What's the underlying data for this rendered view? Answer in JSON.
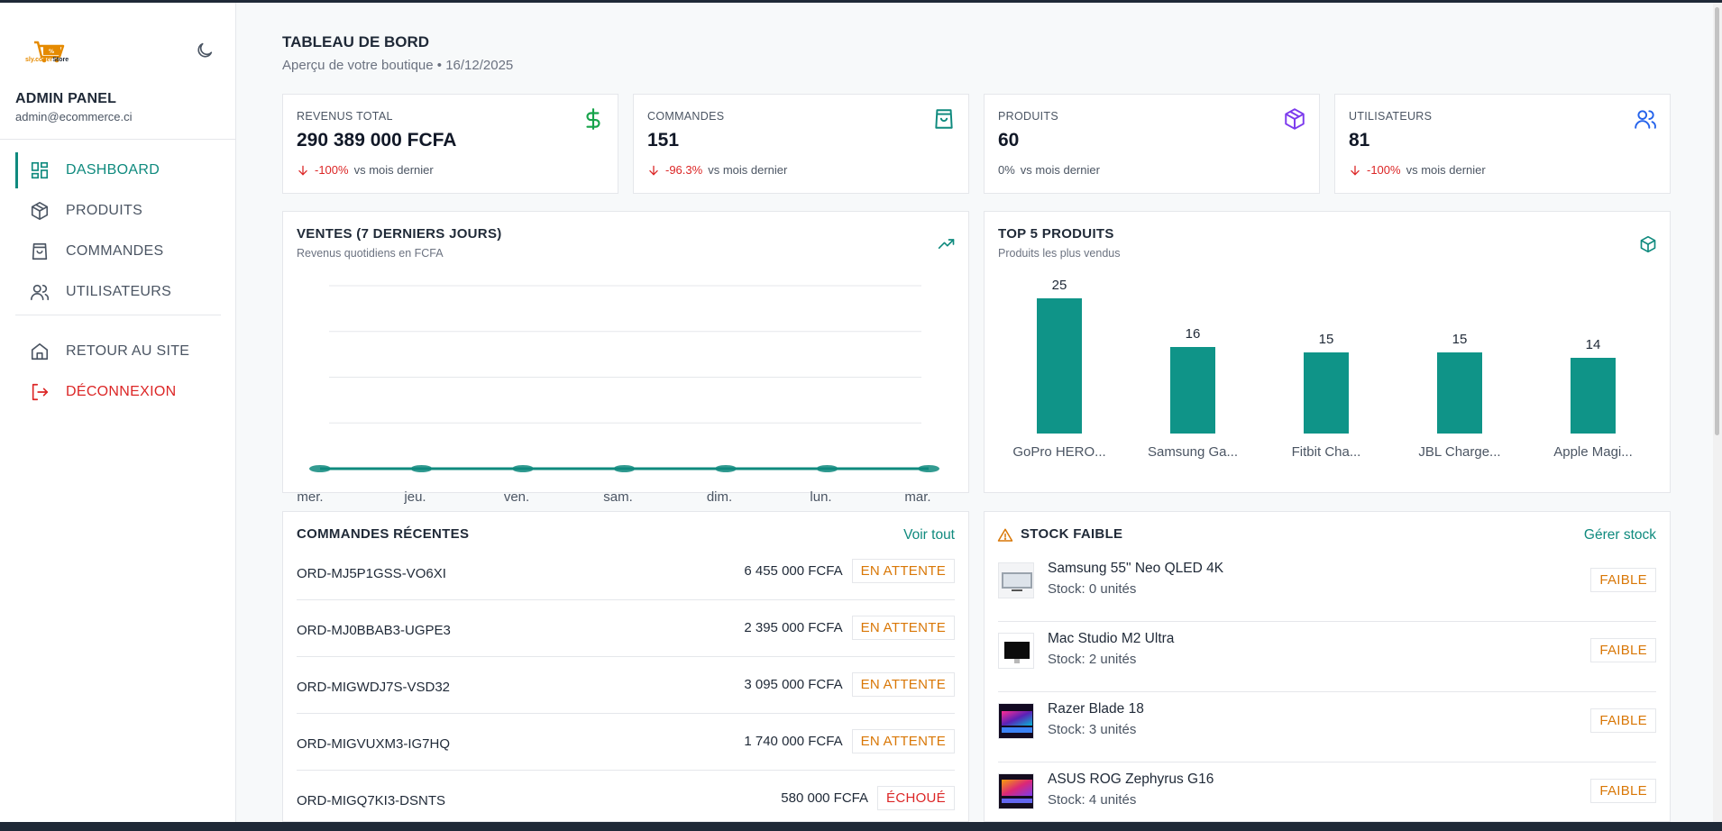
{
  "sidebar": {
    "logo_text_1": "sly.coder",
    "logo_text_2": "Store",
    "admin_title": "ADMIN PANEL",
    "admin_email": "admin@ecommerce.ci",
    "nav": [
      {
        "label": "DASHBOARD",
        "icon": "dashboard-icon",
        "active": true
      },
      {
        "label": "PRODUITS",
        "icon": "box-icon"
      },
      {
        "label": "COMMANDES",
        "icon": "shopping-bag-icon"
      },
      {
        "label": "UTILISATEURS",
        "icon": "users-icon"
      },
      {
        "label": "RETOUR AU SITE",
        "icon": "home-icon"
      },
      {
        "label": "DÉCONNEXION",
        "icon": "logout-icon"
      }
    ]
  },
  "header": {
    "title": "TABLEAU DE BORD",
    "subtitle": "Aperçu de votre boutique • 16/12/2025"
  },
  "stats": [
    {
      "label": "REVENUS TOTAL",
      "value": "290 389 000 FCFA",
      "trend": "-100%",
      "trend_suffix": "vs mois dernier",
      "icon": "dollar-icon",
      "color": "#16a34a"
    },
    {
      "label": "COMMANDES",
      "value": "151",
      "trend": "-96.3%",
      "trend_suffix": "vs mois dernier",
      "icon": "shopping-bag-icon",
      "color": "#0f8a7e"
    },
    {
      "label": "PRODUITS",
      "value": "60",
      "trend": "0%",
      "trend_suffix": "vs mois dernier",
      "icon": "box-icon",
      "color": "#7c3aed"
    },
    {
      "label": "UTILISATEURS",
      "value": "81",
      "trend": "-100%",
      "trend_suffix": "vs mois dernier",
      "icon": "users-icon",
      "color": "#2563eb"
    }
  ],
  "sales_card": {
    "title": "VENTES (7 DERNIERS JOURS)",
    "subtitle": "Revenus quotidiens en FCFA"
  },
  "top_card": {
    "title": "TOP 5 PRODUITS",
    "subtitle": "Produits les plus vendus"
  },
  "chart_data": [
    {
      "type": "line",
      "title": "VENTES (7 DERNIERS JOURS)",
      "x": [
        "mer.",
        "jeu.",
        "ven.",
        "sam.",
        "dim.",
        "lun.",
        "mar."
      ],
      "series": [
        {
          "values": [
            0,
            0,
            0,
            0,
            0,
            0,
            0
          ]
        }
      ],
      "ylim": [
        0,
        4
      ],
      "grid": true,
      "color": "#0f8a7e"
    },
    {
      "type": "bar",
      "title": "TOP 5 PRODUITS",
      "categories": [
        "GoPro HERO...",
        "Samsung Ga...",
        "Fitbit Cha...",
        "JBL Charge...",
        "Apple Magi..."
      ],
      "values": [
        25,
        16,
        15,
        15,
        14
      ],
      "ylim": [
        0,
        25
      ],
      "color": "#0f9488"
    }
  ],
  "orders": {
    "title": "COMMANDES RÉCENTES",
    "link": "Voir tout",
    "rows": [
      {
        "id": "ORD-MJ5P1GSS-VO6XI",
        "amount": "6 455 000 FCFA",
        "status": "EN ATTENTE",
        "kind": "pending"
      },
      {
        "id": "ORD-MJ0BBAB3-UGPE3",
        "amount": "2 395 000 FCFA",
        "status": "EN ATTENTE",
        "kind": "pending"
      },
      {
        "id": "ORD-MIGWDJ7S-VSD32",
        "amount": "3 095 000 FCFA",
        "status": "EN ATTENTE",
        "kind": "pending"
      },
      {
        "id": "ORD-MIGVUXM3-IG7HQ",
        "amount": "1 740 000 FCFA",
        "status": "EN ATTENTE",
        "kind": "pending"
      },
      {
        "id": "ORD-MIGQ7KI3-DSNTS",
        "amount": "580 000 FCFA",
        "status": "ÉCHOUÉ",
        "kind": "failed"
      }
    ]
  },
  "stock": {
    "title": "STOCK FAIBLE",
    "link": "Gérer stock",
    "rows": [
      {
        "name": "Samsung 55\" Neo QLED 4K",
        "qty": "Stock: 0 unités",
        "badge": "FAIBLE"
      },
      {
        "name": "Mac Studio M2 Ultra",
        "qty": "Stock: 2 unités",
        "badge": "FAIBLE"
      },
      {
        "name": "Razer Blade 18",
        "qty": "Stock: 3 unités",
        "badge": "FAIBLE"
      },
      {
        "name": "ASUS ROG Zephyrus G16",
        "qty": "Stock: 4 unités",
        "badge": "FAIBLE"
      }
    ]
  }
}
